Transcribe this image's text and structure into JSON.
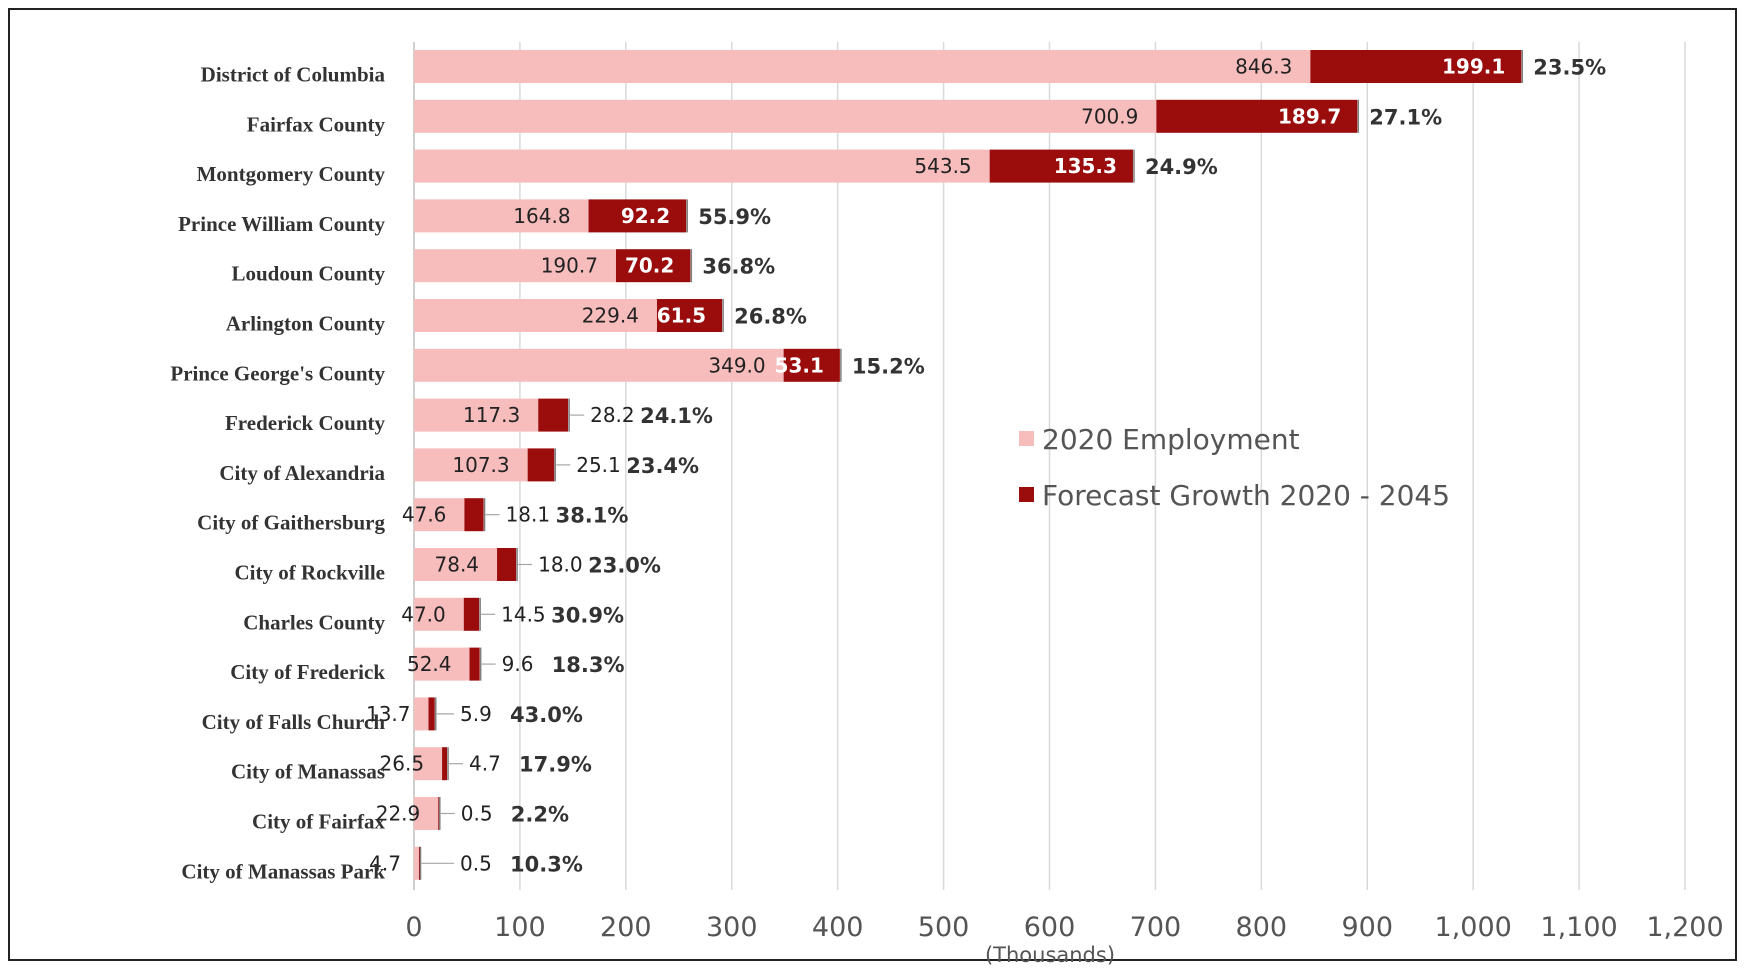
{
  "chart_data": {
    "type": "bar",
    "orientation": "horizontal",
    "stacked": true,
    "categories": [
      "District of Columbia",
      "Fairfax County",
      "Montgomery County",
      "Prince William County",
      "Loudoun County",
      "Arlington County",
      "Prince George's County",
      "Frederick County",
      "City of Alexandria",
      "City of Gaithersburg",
      "City of Rockville",
      "Charles County",
      "City of Frederick",
      "City of Falls Church",
      "City of Manassas",
      "City of Fairfax",
      "City of Manassas Park"
    ],
    "series": [
      {
        "name": "2020 Employment",
        "color": "#f7bcbc",
        "values": [
          846.3,
          700.9,
          543.5,
          164.8,
          190.7,
          229.4,
          349.0,
          117.3,
          107.3,
          47.6,
          78.4,
          47.0,
          52.4,
          13.7,
          26.5,
          22.9,
          4.7
        ],
        "labels": [
          "846.3",
          "700.9",
          "543.5",
          "164.8",
          "190.7",
          "229.4",
          "349.0",
          "117.3",
          "107.3",
          "47.6",
          "78.4",
          "47.0",
          "52.4",
          "13.7",
          "26.5",
          "22.9",
          "4.7"
        ]
      },
      {
        "name": "Forecast Growth 2020 - 2045",
        "color": "#9b0d0d",
        "values": [
          199.1,
          189.7,
          135.3,
          92.2,
          70.2,
          61.5,
          53.1,
          28.2,
          25.1,
          18.1,
          18.0,
          14.5,
          9.6,
          5.9,
          4.7,
          0.5,
          0.5
        ],
        "labels": [
          "199.1",
          "189.7",
          "135.3",
          "92.2",
          "70.2",
          "61.5",
          "53.1",
          "28.2",
          "25.1",
          "18.1",
          "18.0",
          "14.5",
          "9.6",
          "5.9",
          "4.7",
          "0.5",
          "0.5"
        ]
      }
    ],
    "percent_labels": [
      "23.5%",
      "27.1%",
      "24.9%",
      "55.9%",
      "36.8%",
      "26.8%",
      "15.2%",
      "24.1%",
      "23.4%",
      "38.1%",
      "23.0%",
      "30.9%",
      "18.3%",
      "43.0%",
      "17.9%",
      "2.2%",
      "10.3%"
    ],
    "x_ticks": [
      "0",
      "100",
      "200",
      "300",
      "400",
      "500",
      "600",
      "700",
      "800",
      "900",
      "1,000",
      "1,100",
      "1,200"
    ],
    "xlim": [
      0,
      1200
    ],
    "x_unit_label": "(Thousands)",
    "grid": "vertical",
    "legend_position": "right-center"
  }
}
